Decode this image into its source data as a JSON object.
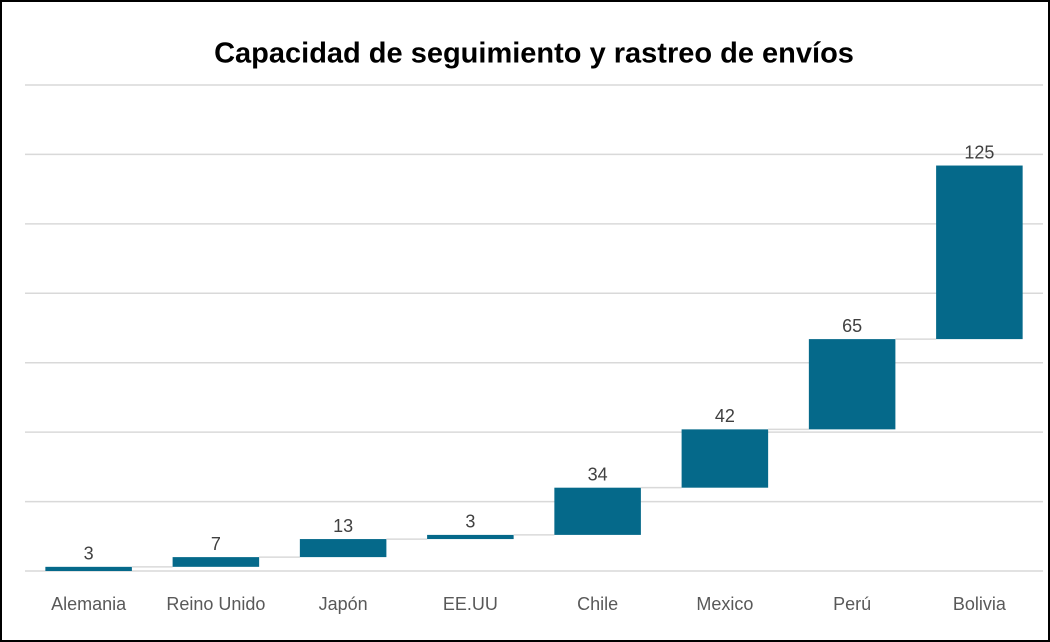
{
  "chart_data": {
    "type": "waterfall",
    "title": "Capacidad de seguimiento y rastreo de envíos",
    "categories": [
      "Alemania",
      "Reino Unido",
      "Japón",
      "EE.UU",
      "Chile",
      "Mexico",
      "Perú",
      "Bolivia"
    ],
    "values": [
      3,
      7,
      13,
      3,
      34,
      42,
      65,
      125
    ],
    "color": "#05698a",
    "ylim": [
      0,
      350
    ],
    "yticks": [
      0,
      50,
      100,
      150,
      200,
      250,
      300,
      350
    ],
    "grid": true
  }
}
